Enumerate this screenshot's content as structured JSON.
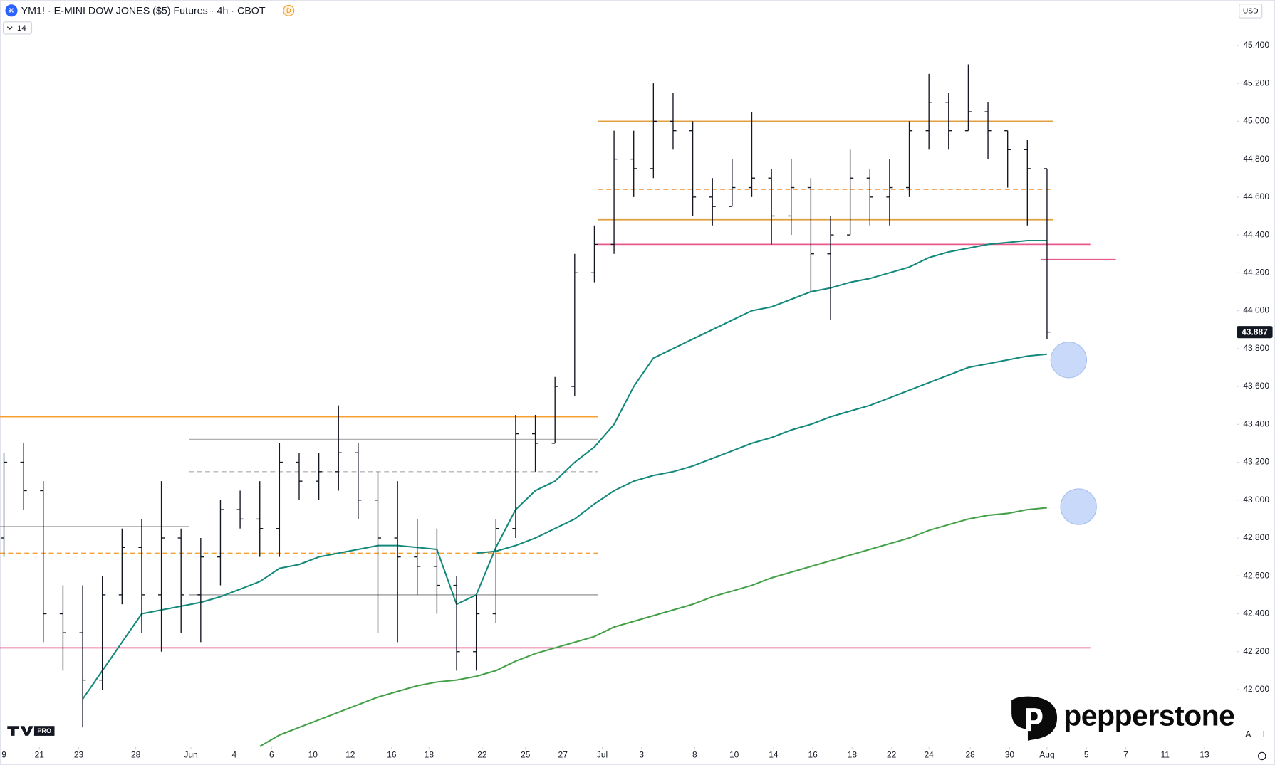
{
  "chart_data": {
    "type": "ohlc",
    "title": "YM1! · E-MINI DOW JONES ($5) Futures · 4h · CBOT",
    "x": [
      0,
      1,
      2,
      3,
      4,
      5,
      6,
      7,
      8,
      9,
      10,
      11,
      12,
      13,
      14,
      15,
      16,
      17,
      18,
      19,
      20,
      21,
      22,
      23,
      24,
      25,
      26,
      27,
      28,
      29,
      30,
      31,
      32,
      33,
      34,
      35,
      36,
      37,
      38,
      39,
      40,
      41,
      42,
      43,
      44,
      45,
      46,
      47,
      48,
      49,
      50,
      51,
      52,
      53
    ],
    "open": [
      42800,
      43200,
      43050,
      42400,
      42300,
      42050,
      42500,
      42750,
      42500,
      42800,
      42500,
      42700,
      42950,
      42900,
      42850,
      43200,
      43100,
      43150,
      43250,
      43000,
      42800,
      42700,
      42650,
      42550,
      42200,
      42400,
      42850,
      43350,
      43300,
      43600,
      44200,
      44350,
      44800,
      44750,
      45000,
      44950,
      44600,
      44550,
      44650,
      44700,
      44500,
      44650,
      44300,
      44400,
      44700,
      44600,
      44650,
      44950,
      45100,
      44950,
      45050,
      44950,
      44850,
      44750
    ],
    "high": [
      43250,
      43300,
      43100,
      42550,
      42550,
      42600,
      42850,
      42900,
      43100,
      42850,
      42800,
      43000,
      43050,
      43100,
      43300,
      43250,
      43250,
      43500,
      43300,
      43150,
      43100,
      42900,
      42850,
      42600,
      42500,
      42900,
      43450,
      43450,
      43650,
      44300,
      44450,
      44950,
      44950,
      45200,
      45150,
      45000,
      44700,
      44800,
      45050,
      44750,
      44800,
      44700,
      44500,
      44850,
      44750,
      44800,
      45000,
      45250,
      45150,
      45300,
      45100,
      44950,
      44900,
      44750
    ],
    "low": [
      42700,
      42950,
      42250,
      42100,
      41800,
      42000,
      42450,
      42300,
      42200,
      42300,
      42250,
      42550,
      42850,
      42700,
      42700,
      43000,
      43000,
      43050,
      42900,
      42300,
      42250,
      42500,
      42400,
      42100,
      42100,
      42350,
      42800,
      43150,
      43300,
      43550,
      44150,
      44300,
      44600,
      44700,
      44850,
      44500,
      44450,
      44550,
      44600,
      44350,
      44400,
      44100,
      43950,
      44400,
      44450,
      44450,
      44600,
      44850,
      44850,
      44950,
      44800,
      44650,
      44450,
      43850
    ],
    "close": [
      43200,
      43050,
      42400,
      42300,
      42050,
      42500,
      42750,
      42500,
      42800,
      42500,
      42700,
      42950,
      42900,
      42850,
      43200,
      43100,
      43150,
      43250,
      43000,
      42800,
      42700,
      42650,
      42550,
      42200,
      42400,
      42850,
      43350,
      43300,
      43600,
      44200,
      44350,
      44800,
      44750,
      45000,
      44950,
      44600,
      44550,
      44650,
      44700,
      44500,
      44650,
      44300,
      44400,
      44700,
      44600,
      44650,
      44950,
      45100,
      44950,
      45050,
      44950,
      44850,
      44750,
      43887
    ],
    "color": "#131722",
    "lines": [
      {
        "color": "#12897b",
        "values": [
          null,
          null,
          null,
          null,
          41950,
          42100,
          42250,
          42400,
          42420,
          42440,
          42460,
          42490,
          42530,
          42570,
          42640,
          42660,
          42700,
          42720,
          42740,
          42760,
          42760,
          42750,
          42740,
          42450,
          42500,
          42750,
          42950,
          43050,
          43100,
          43200,
          43280,
          43400,
          43600,
          43750,
          43800,
          43850,
          43900,
          43950,
          44000,
          44020,
          44060,
          44100,
          44120,
          44150,
          44170,
          44200,
          44230,
          44280,
          44310,
          44330,
          44350,
          44360,
          44370,
          44370
        ]
      },
      {
        "color": "#12897b",
        "values": [
          null,
          null,
          null,
          null,
          null,
          null,
          null,
          null,
          null,
          null,
          null,
          null,
          null,
          null,
          null,
          null,
          null,
          null,
          null,
          null,
          null,
          null,
          null,
          null,
          42720,
          42730,
          42760,
          42800,
          42850,
          42900,
          42980,
          43050,
          43100,
          43130,
          43150,
          43180,
          43220,
          43260,
          43300,
          43330,
          43370,
          43400,
          43440,
          43470,
          43500,
          43540,
          43580,
          43620,
          43660,
          43700,
          43720,
          43740,
          43760,
          43770
        ]
      },
      {
        "color": "#43a047",
        "values": [
          null,
          null,
          null,
          null,
          null,
          null,
          null,
          null,
          null,
          null,
          null,
          null,
          null,
          41700,
          41760,
          41800,
          41840,
          41880,
          41920,
          41960,
          41990,
          42020,
          42040,
          42050,
          42070,
          42100,
          42150,
          42190,
          42220,
          42250,
          42280,
          42330,
          42360,
          42390,
          42420,
          42450,
          42490,
          42520,
          42550,
          42590,
          42620,
          42650,
          42680,
          42710,
          42740,
          42770,
          42800,
          42840,
          42870,
          42900,
          42920,
          42930,
          42950,
          42960
        ]
      }
    ],
    "levels": [
      {
        "value": 45000,
        "color": "#e0a040",
        "dashed": false,
        "from": 30.2,
        "to": 53.3
      },
      {
        "value": 44640,
        "color": "#f0a050",
        "dashed": true,
        "from": 30.2,
        "to": 53.3
      },
      {
        "value": 44480,
        "color": "#e0a040",
        "dashed": false,
        "from": 30.2,
        "to": 53.3
      },
      {
        "value": 44350,
        "color": "#e85a8c",
        "dashed": false,
        "from": 30.2,
        "to": 55.2
      },
      {
        "value": 44270,
        "color": "#e85a8c",
        "dashed": false,
        "from": 52.7,
        "to": 56.5
      },
      {
        "value": 43440,
        "color": "#f5a030",
        "dashed": false,
        "from": -0.2,
        "to": 30.2
      },
      {
        "value": 43320,
        "color": "#b0b0b0",
        "dashed": false,
        "from": 9.4,
        "to": 30.2
      },
      {
        "value": 43150,
        "color": "#b8b8b8",
        "dashed": true,
        "from": 9.4,
        "to": 30.2
      },
      {
        "value": 42860,
        "color": "#b0b0b0",
        "dashed": false,
        "from": -0.2,
        "to": 9.4
      },
      {
        "value": 42720,
        "color": "#f5a030",
        "dashed": true,
        "from": -0.2,
        "to": 30.2
      },
      {
        "value": 42500,
        "color": "#b0b0b0",
        "dashed": false,
        "from": 9.4,
        "to": 30.2
      },
      {
        "value": 42220,
        "color": "#e85a8c",
        "dashed": false,
        "from": -0.2,
        "to": 55.2
      }
    ],
    "markers": [
      {
        "x": 54.1,
        "y": 43740
      },
      {
        "x": 54.6,
        "y": 42965
      }
    ],
    "last_price": {
      "value": 43887,
      "label": "43.887"
    },
    "xlim": [
      -0.2,
      62.6
    ],
    "xticks": [
      {
        "value": 0,
        "label": "9"
      },
      {
        "value": 1.8,
        "label": "21"
      },
      {
        "value": 3.8,
        "label": "23"
      },
      {
        "value": 6.7,
        "label": "28"
      },
      {
        "value": 9.5,
        "label": "Jun"
      },
      {
        "value": 11.7,
        "label": "4"
      },
      {
        "value": 13.6,
        "label": "6"
      },
      {
        "value": 15.7,
        "label": "10"
      },
      {
        "value": 17.6,
        "label": "12"
      },
      {
        "value": 19.7,
        "label": "16"
      },
      {
        "value": 21.6,
        "label": "18"
      },
      {
        "value": 24.3,
        "label": "22"
      },
      {
        "value": 26.5,
        "label": "25"
      },
      {
        "value": 28.4,
        "label": "27"
      },
      {
        "value": 30.4,
        "label": "Jul"
      },
      {
        "value": 32.4,
        "label": "3"
      },
      {
        "value": 35.1,
        "label": "8"
      },
      {
        "value": 37.1,
        "label": "10"
      },
      {
        "value": 39.1,
        "label": "14"
      },
      {
        "value": 41.1,
        "label": "16"
      },
      {
        "value": 43.1,
        "label": "18"
      },
      {
        "value": 45.1,
        "label": "22"
      },
      {
        "value": 47.0,
        "label": "24"
      },
      {
        "value": 49.1,
        "label": "28"
      },
      {
        "value": 51.1,
        "label": "30"
      },
      {
        "value": 53.0,
        "label": "Aug"
      },
      {
        "value": 55.0,
        "label": "5"
      },
      {
        "value": 57.0,
        "label": "7"
      },
      {
        "value": 59.0,
        "label": "11"
      },
      {
        "value": 61.0,
        "label": "13"
      }
    ],
    "ylim": [
      41696,
      45640
    ],
    "yticks": [
      {
        "value": 42000,
        "label": "42.000"
      },
      {
        "value": 42200,
        "label": "42.200"
      },
      {
        "value": 42400,
        "label": "42.400"
      },
      {
        "value": 42600,
        "label": "42.600"
      },
      {
        "value": 42800,
        "label": "42.800"
      },
      {
        "value": 43000,
        "label": "43.000"
      },
      {
        "value": 43200,
        "label": "43.200"
      },
      {
        "value": 43400,
        "label": "43.400"
      },
      {
        "value": 43600,
        "label": "43.600"
      },
      {
        "value": 43800,
        "label": "43.800"
      },
      {
        "value": 44000,
        "label": "44.000"
      },
      {
        "value": 44200,
        "label": "44.200"
      },
      {
        "value": 44400,
        "label": "44.400"
      },
      {
        "value": 44600,
        "label": "44.600"
      },
      {
        "value": 44800,
        "label": "44.800"
      },
      {
        "value": 45000,
        "label": "45.000"
      },
      {
        "value": 45200,
        "label": "45.200"
      },
      {
        "value": 45400,
        "label": "45.400"
      }
    ],
    "grid": false
  },
  "ui": {
    "badge": "30",
    "source_badge": "D",
    "indicator_value": "14",
    "currency": "USD",
    "auto": "A",
    "log": "L",
    "tv_badge": "PRO",
    "brand": "pepperstone"
  }
}
